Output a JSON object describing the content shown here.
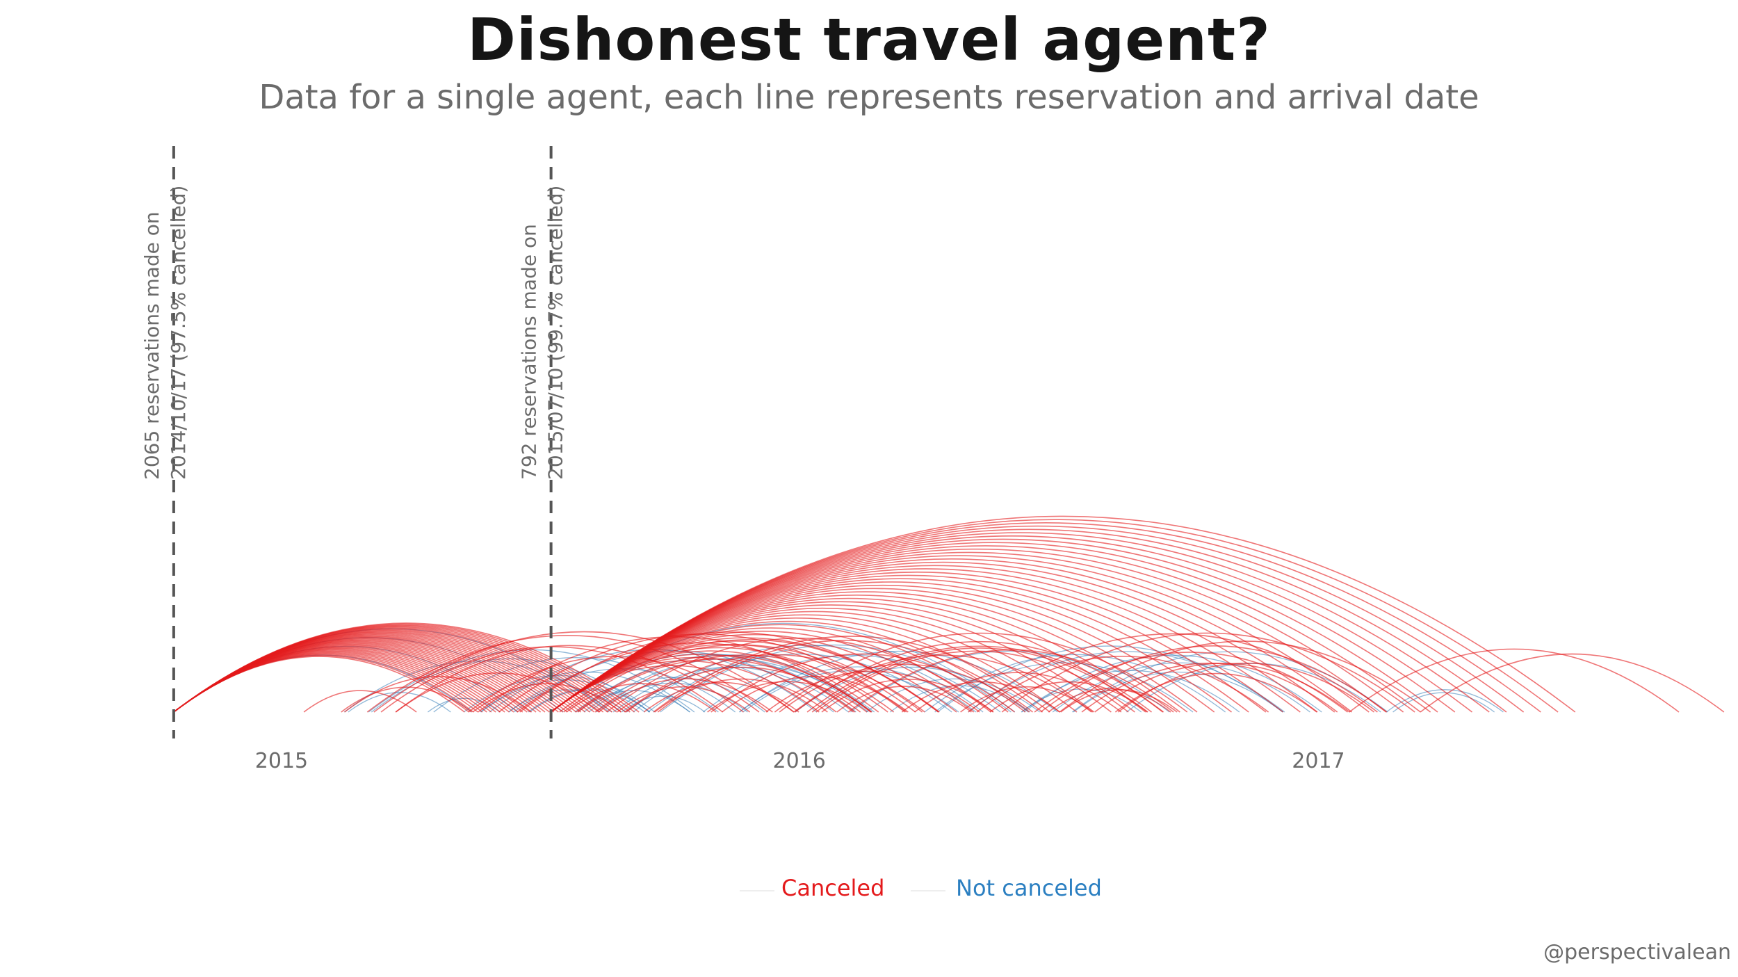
{
  "title": "Dishonest travel agent?",
  "subtitle": "Data for a single agent, each line represents reservation and arrival date",
  "credit": "@perspectivalean",
  "colors": {
    "canceled": "#e41a1c",
    "not_canceled": "#377eb8",
    "reference_line": "#555555",
    "axis_text": "#6b6b6b"
  },
  "legend": {
    "placement": "bottom",
    "canceled": "Canceled",
    "not_canceled": "Not  canceled"
  },
  "chart_data": {
    "type": "arc",
    "x_axis": {
      "range": [
        "2014-09-25",
        "2017-08-25"
      ],
      "ticks": [
        "2015",
        "2016",
        "2017"
      ]
    },
    "grid": false,
    "annotations": [
      {
        "date": "2014-10-17",
        "line1": "2065 reservations made on",
        "line2": "2014/10/17 (97.5% cancelled)"
      },
      {
        "date": "2015-07-10",
        "line1": "792 reservations made on",
        "line2": "2015/07/10 (99.7% cancelled)"
      }
    ],
    "groups": [
      {
        "reservation_date": "2014-10-17",
        "status": "canceled",
        "arrival_from": "2015-05-10",
        "arrival_to": "2015-09-10",
        "count": 40
      },
      {
        "reservation_date": "2014-10-17",
        "status": "not_canceled",
        "arrival_from": "2015-05-15",
        "arrival_to": "2015-08-20",
        "count": 4
      },
      {
        "reservation_date": "2015-07-10",
        "status": "canceled",
        "arrival_from": "2016-01-15",
        "arrival_to": "2017-07-01",
        "count": 45
      },
      {
        "reservation_date": "2015-07-10",
        "status": "not_canceled",
        "arrival_from": "2016-02-10",
        "arrival_to": "2016-06-01",
        "count": 2
      },
      {
        "reservation_date_from": "2015-01-15",
        "reservation_date_to": "2016-08-20",
        "status": "canceled",
        "span_days_from": 60,
        "span_days_to": 300,
        "count": 60
      },
      {
        "reservation_date_from": "2015-02-01",
        "reservation_date_to": "2016-08-20",
        "status": "not_canceled",
        "span_days_from": 50,
        "span_days_to": 250,
        "count": 45
      },
      {
        "reservation_date_from": "2016-12-10",
        "reservation_date_to": "2017-04-01",
        "status": "canceled",
        "span_days_from": 100,
        "span_days_to": 290,
        "count": 2
      },
      {
        "reservation_date_from": "2017-02-01",
        "reservation_date_to": "2017-04-01",
        "status": "not_canceled",
        "span_days_from": 70,
        "span_days_to": 90,
        "count": 2
      }
    ]
  }
}
